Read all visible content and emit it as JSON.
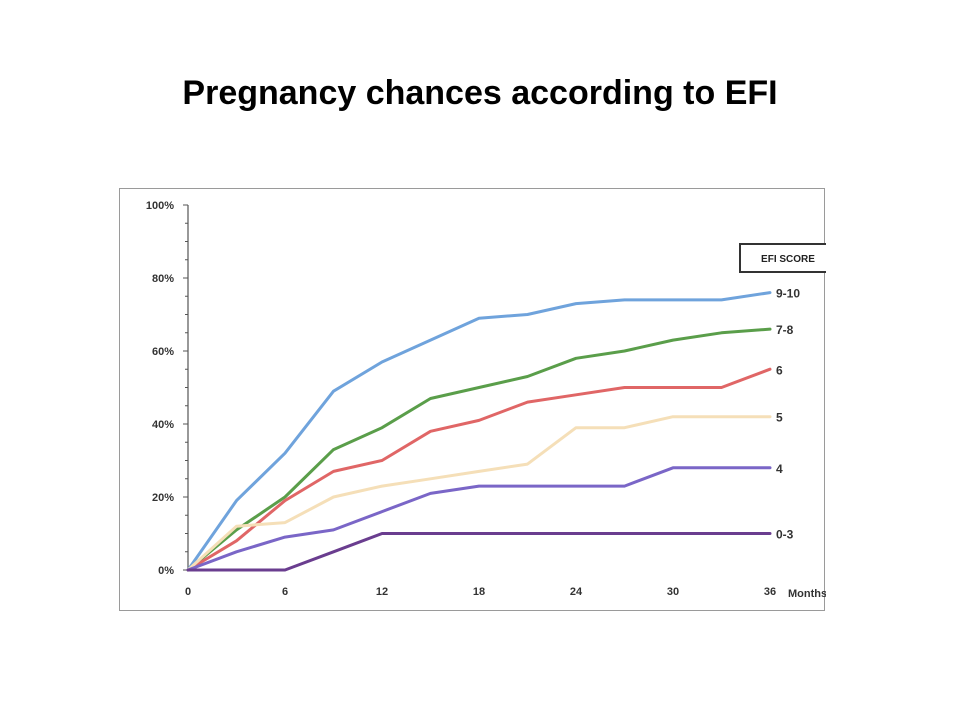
{
  "slide": {
    "title": "Pregnancy chances according to EFI"
  },
  "chart_data": {
    "type": "line",
    "title": "Pregnancy chances according to EFI",
    "xlabel": "Months",
    "ylabel": "",
    "xlim": [
      0,
      36
    ],
    "ylim": [
      0,
      100
    ],
    "x_ticks": [
      0,
      6,
      12,
      18,
      24,
      30,
      36
    ],
    "y_ticks": [
      0,
      20,
      40,
      60,
      80,
      100
    ],
    "y_tick_labels": [
      "0%",
      "20%",
      "40%",
      "60%",
      "80%",
      "100%"
    ],
    "grid": false,
    "legend_title": "EFI SCORE",
    "legend_placement": "top-right",
    "series": [
      {
        "name": "9-10",
        "color": "#6fa3dc",
        "points": [
          [
            0,
            0
          ],
          [
            3,
            19
          ],
          [
            6,
            32
          ],
          [
            9,
            49
          ],
          [
            12,
            57
          ],
          [
            15,
            63
          ],
          [
            18,
            69
          ],
          [
            21,
            70
          ],
          [
            24,
            73
          ],
          [
            27,
            74
          ],
          [
            30,
            74
          ],
          [
            33,
            74
          ],
          [
            36,
            76
          ]
        ]
      },
      {
        "name": "7-8",
        "color": "#5a9e4a",
        "points": [
          [
            0,
            0
          ],
          [
            3,
            11
          ],
          [
            6,
            20
          ],
          [
            9,
            33
          ],
          [
            12,
            39
          ],
          [
            15,
            47
          ],
          [
            18,
            50
          ],
          [
            21,
            53
          ],
          [
            24,
            58
          ],
          [
            27,
            60
          ],
          [
            30,
            63
          ],
          [
            33,
            65
          ],
          [
            36,
            66
          ]
        ]
      },
      {
        "name": "6",
        "color": "#e06666",
        "points": [
          [
            0,
            0
          ],
          [
            3,
            8
          ],
          [
            6,
            19
          ],
          [
            9,
            27
          ],
          [
            12,
            30
          ],
          [
            15,
            38
          ],
          [
            18,
            41
          ],
          [
            21,
            46
          ],
          [
            24,
            48
          ],
          [
            27,
            50
          ],
          [
            30,
            50
          ],
          [
            33,
            50
          ],
          [
            36,
            55
          ]
        ]
      },
      {
        "name": "5",
        "color": "#f5dfb8",
        "points": [
          [
            0,
            0
          ],
          [
            3,
            12
          ],
          [
            6,
            13
          ],
          [
            9,
            20
          ],
          [
            12,
            23
          ],
          [
            15,
            25
          ],
          [
            18,
            27
          ],
          [
            21,
            29
          ],
          [
            24,
            39
          ],
          [
            27,
            39
          ],
          [
            30,
            42
          ],
          [
            33,
            42
          ],
          [
            36,
            42
          ]
        ]
      },
      {
        "name": "4",
        "color": "#7a66c7",
        "points": [
          [
            0,
            0
          ],
          [
            3,
            5
          ],
          [
            6,
            9
          ],
          [
            9,
            11
          ],
          [
            12,
            16
          ],
          [
            15,
            21
          ],
          [
            18,
            23
          ],
          [
            21,
            23
          ],
          [
            24,
            23
          ],
          [
            27,
            23
          ],
          [
            30,
            28
          ],
          [
            33,
            28
          ],
          [
            36,
            28
          ]
        ]
      },
      {
        "name": "0-3",
        "color": "#6a3d8f",
        "points": [
          [
            0,
            0
          ],
          [
            3,
            0
          ],
          [
            6,
            0
          ],
          [
            9,
            5
          ],
          [
            12,
            10
          ],
          [
            15,
            10
          ],
          [
            18,
            10
          ],
          [
            21,
            10
          ],
          [
            24,
            10
          ],
          [
            27,
            10
          ],
          [
            30,
            10
          ],
          [
            33,
            10
          ],
          [
            36,
            10
          ]
        ]
      }
    ]
  }
}
